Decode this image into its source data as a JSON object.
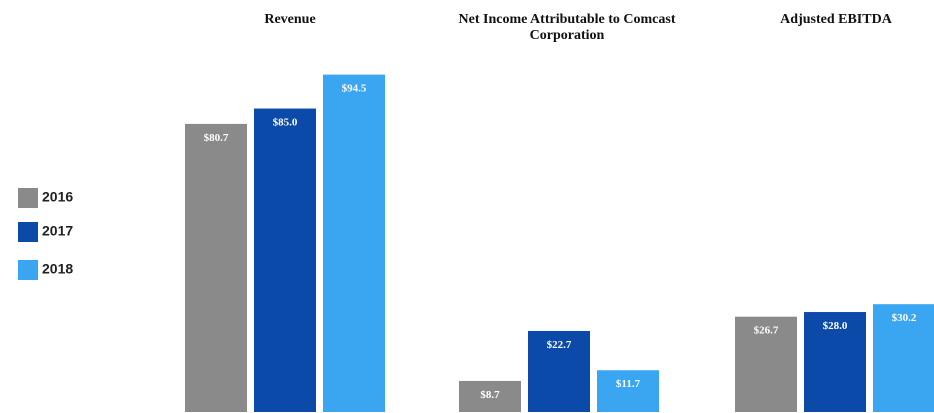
{
  "chart_data": {
    "type": "bar",
    "categories": [
      "Revenue",
      "Net Income Attributable to Comcast Corporation",
      "Adjusted EBITDA"
    ],
    "series": [
      {
        "name": "2016",
        "color": "#8a8a8a",
        "values": [
          80.7,
          8.7,
          26.7
        ],
        "value_labels": [
          "$80.7",
          "$8.7",
          "$26.7"
        ]
      },
      {
        "name": "2017",
        "color": "#0b4aa8",
        "values": [
          85.0,
          22.7,
          28.0
        ],
        "value_labels": [
          "$85.0",
          "$22.7",
          "$28.0"
        ]
      },
      {
        "name": "2018",
        "color": "#3aa5f0",
        "values": [
          94.5,
          11.7,
          30.2
        ],
        "value_labels": [
          "$94.5",
          "$11.7",
          "$30.2"
        ]
      }
    ],
    "ylim": [
      0,
      100
    ]
  }
}
